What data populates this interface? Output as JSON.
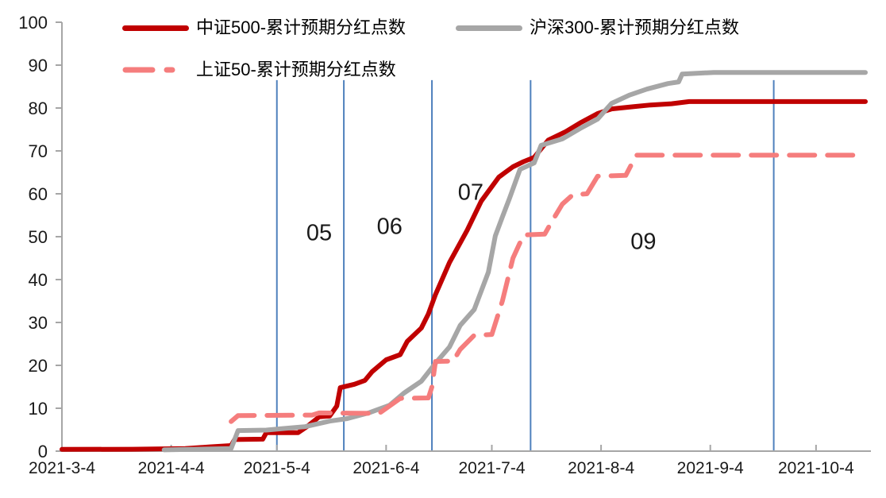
{
  "chart_data": {
    "type": "line",
    "title": "",
    "background_color": "#ffffff",
    "axis_color": "#a6a6a6",
    "tick_label_color": "#1a1a1a",
    "annotation_color": "#1a1a1a",
    "legend_position": "top-left",
    "x_axis": {
      "unit": "date",
      "start_label": "2021-3-4",
      "end_label": "2021-10-4",
      "range_days": [
        0,
        228
      ],
      "ticks": [
        {
          "label": "2021-3-4",
          "day": 0
        },
        {
          "label": "2021-4-4",
          "day": 31
        },
        {
          "label": "2021-5-4",
          "day": 61
        },
        {
          "label": "2021-6-4",
          "day": 92
        },
        {
          "label": "2021-7-4",
          "day": 122
        },
        {
          "label": "2021-8-4",
          "day": 153
        },
        {
          "label": "2021-9-4",
          "day": 184
        },
        {
          "label": "2021-10-4",
          "day": 214
        }
      ]
    },
    "y_axis": {
      "range": [
        0,
        100
      ],
      "ticks": [
        0,
        10,
        20,
        30,
        40,
        50,
        60,
        70,
        80,
        90,
        100
      ]
    },
    "series": [
      {
        "key": "csi500",
        "name": "中证500-累计预期分红点数",
        "color": "#c00000",
        "line_style": "solid",
        "final_value": 81.5,
        "points": [
          [
            0,
            0.4
          ],
          [
            20,
            0.45
          ],
          [
            35,
            0.6
          ],
          [
            42,
            1.0
          ],
          [
            48,
            1.3
          ],
          [
            49,
            2.7
          ],
          [
            57,
            2.8
          ],
          [
            58,
            4.3
          ],
          [
            67,
            4.3
          ],
          [
            70,
            6.0
          ],
          [
            73,
            8.0
          ],
          [
            76,
            8.2
          ],
          [
            78,
            10.5
          ],
          [
            79,
            14.8
          ],
          [
            83,
            15.6
          ],
          [
            86,
            16.5
          ],
          [
            88,
            18.5
          ],
          [
            92,
            21.3
          ],
          [
            96,
            22.5
          ],
          [
            98,
            25.6
          ],
          [
            102,
            28.7
          ],
          [
            104,
            32.0
          ],
          [
            106,
            36.5
          ],
          [
            110,
            44.0
          ],
          [
            115,
            51.5
          ],
          [
            119,
            58.3
          ],
          [
            124,
            63.9
          ],
          [
            128,
            66.3
          ],
          [
            131,
            67.5
          ],
          [
            134,
            68.5
          ],
          [
            138,
            72.5
          ],
          [
            143,
            74.5
          ],
          [
            147,
            76.5
          ],
          [
            152,
            78.7
          ],
          [
            156,
            79.8
          ],
          [
            162,
            80.3
          ],
          [
            167,
            80.7
          ],
          [
            173,
            81.0
          ],
          [
            178,
            81.5
          ],
          [
            228,
            81.5
          ]
        ]
      },
      {
        "key": "hs300",
        "name": "沪深300-累计预期分红点数",
        "color": "#a6a6a6",
        "line_style": "solid",
        "final_value": 88.3,
        "points": [
          [
            29,
            0.3
          ],
          [
            48,
            0.6
          ],
          [
            50,
            4.8
          ],
          [
            58,
            4.9
          ],
          [
            62,
            5.2
          ],
          [
            69,
            5.7
          ],
          [
            76,
            7.0
          ],
          [
            81,
            7.6
          ],
          [
            87,
            8.9
          ],
          [
            93,
            10.7
          ],
          [
            97,
            13.5
          ],
          [
            102,
            16.3
          ],
          [
            106,
            20.5
          ],
          [
            110,
            24.3
          ],
          [
            113,
            29.3
          ],
          [
            117,
            33.0
          ],
          [
            121,
            41.7
          ],
          [
            123,
            50.2
          ],
          [
            125,
            54.6
          ],
          [
            127,
            58.9
          ],
          [
            130,
            65.7
          ],
          [
            134,
            67.2
          ],
          [
            136,
            71.3
          ],
          [
            142,
            72.8
          ],
          [
            147,
            75.2
          ],
          [
            152,
            77.4
          ],
          [
            156,
            81.1
          ],
          [
            161,
            83.0
          ],
          [
            166,
            84.4
          ],
          [
            172,
            85.7
          ],
          [
            175,
            86.1
          ],
          [
            176,
            87.9
          ],
          [
            185,
            88.3
          ],
          [
            228,
            88.3
          ]
        ]
      },
      {
        "key": "sse50",
        "name": "上证50-累计预期分红点数",
        "color": "#f57d7d",
        "line_style": "dashed",
        "final_value": 69.0,
        "points": [
          [
            48,
            6.9
          ],
          [
            50,
            8.3
          ],
          [
            71,
            8.4
          ],
          [
            73,
            8.9
          ],
          [
            90,
            8.8
          ],
          [
            96,
            12.3
          ],
          [
            104,
            12.4
          ],
          [
            105,
            15.0
          ],
          [
            106,
            20.9
          ],
          [
            111,
            21.0
          ],
          [
            113,
            23.7
          ],
          [
            117,
            27.0
          ],
          [
            122,
            27.2
          ],
          [
            125,
            35.0
          ],
          [
            128,
            45.0
          ],
          [
            131,
            50.4
          ],
          [
            137,
            50.6
          ],
          [
            139,
            53.5
          ],
          [
            142,
            57.6
          ],
          [
            145,
            59.8
          ],
          [
            149,
            60.0
          ],
          [
            152,
            64.1
          ],
          [
            160,
            64.3
          ],
          [
            163,
            69.0
          ],
          [
            228,
            69.0
          ]
        ]
      }
    ],
    "reference_lines": {
      "color": "#4f81bd",
      "top_value": 86.5,
      "days": [
        61,
        80,
        105,
        133,
        202
      ]
    },
    "annotations": [
      {
        "label": "05",
        "day": 73,
        "value": 51.0
      },
      {
        "label": "06",
        "day": 93,
        "value": 52.5
      },
      {
        "label": "07",
        "day": 116,
        "value": 60.5
      },
      {
        "label": "09",
        "day": 165,
        "value": 49.0
      }
    ]
  }
}
